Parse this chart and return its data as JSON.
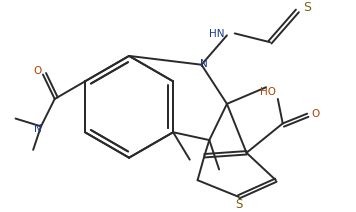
{
  "bg_color": "#ffffff",
  "lc": "#2a2a2a",
  "sc": "#7a6010",
  "oc": "#b04000",
  "nc": "#1a3a8a",
  "lw": 1.4,
  "figsize": [
    3.56,
    2.12
  ],
  "dpi": 100,
  "xlim": [
    0,
    356
  ],
  "ylim": [
    0,
    212
  ]
}
